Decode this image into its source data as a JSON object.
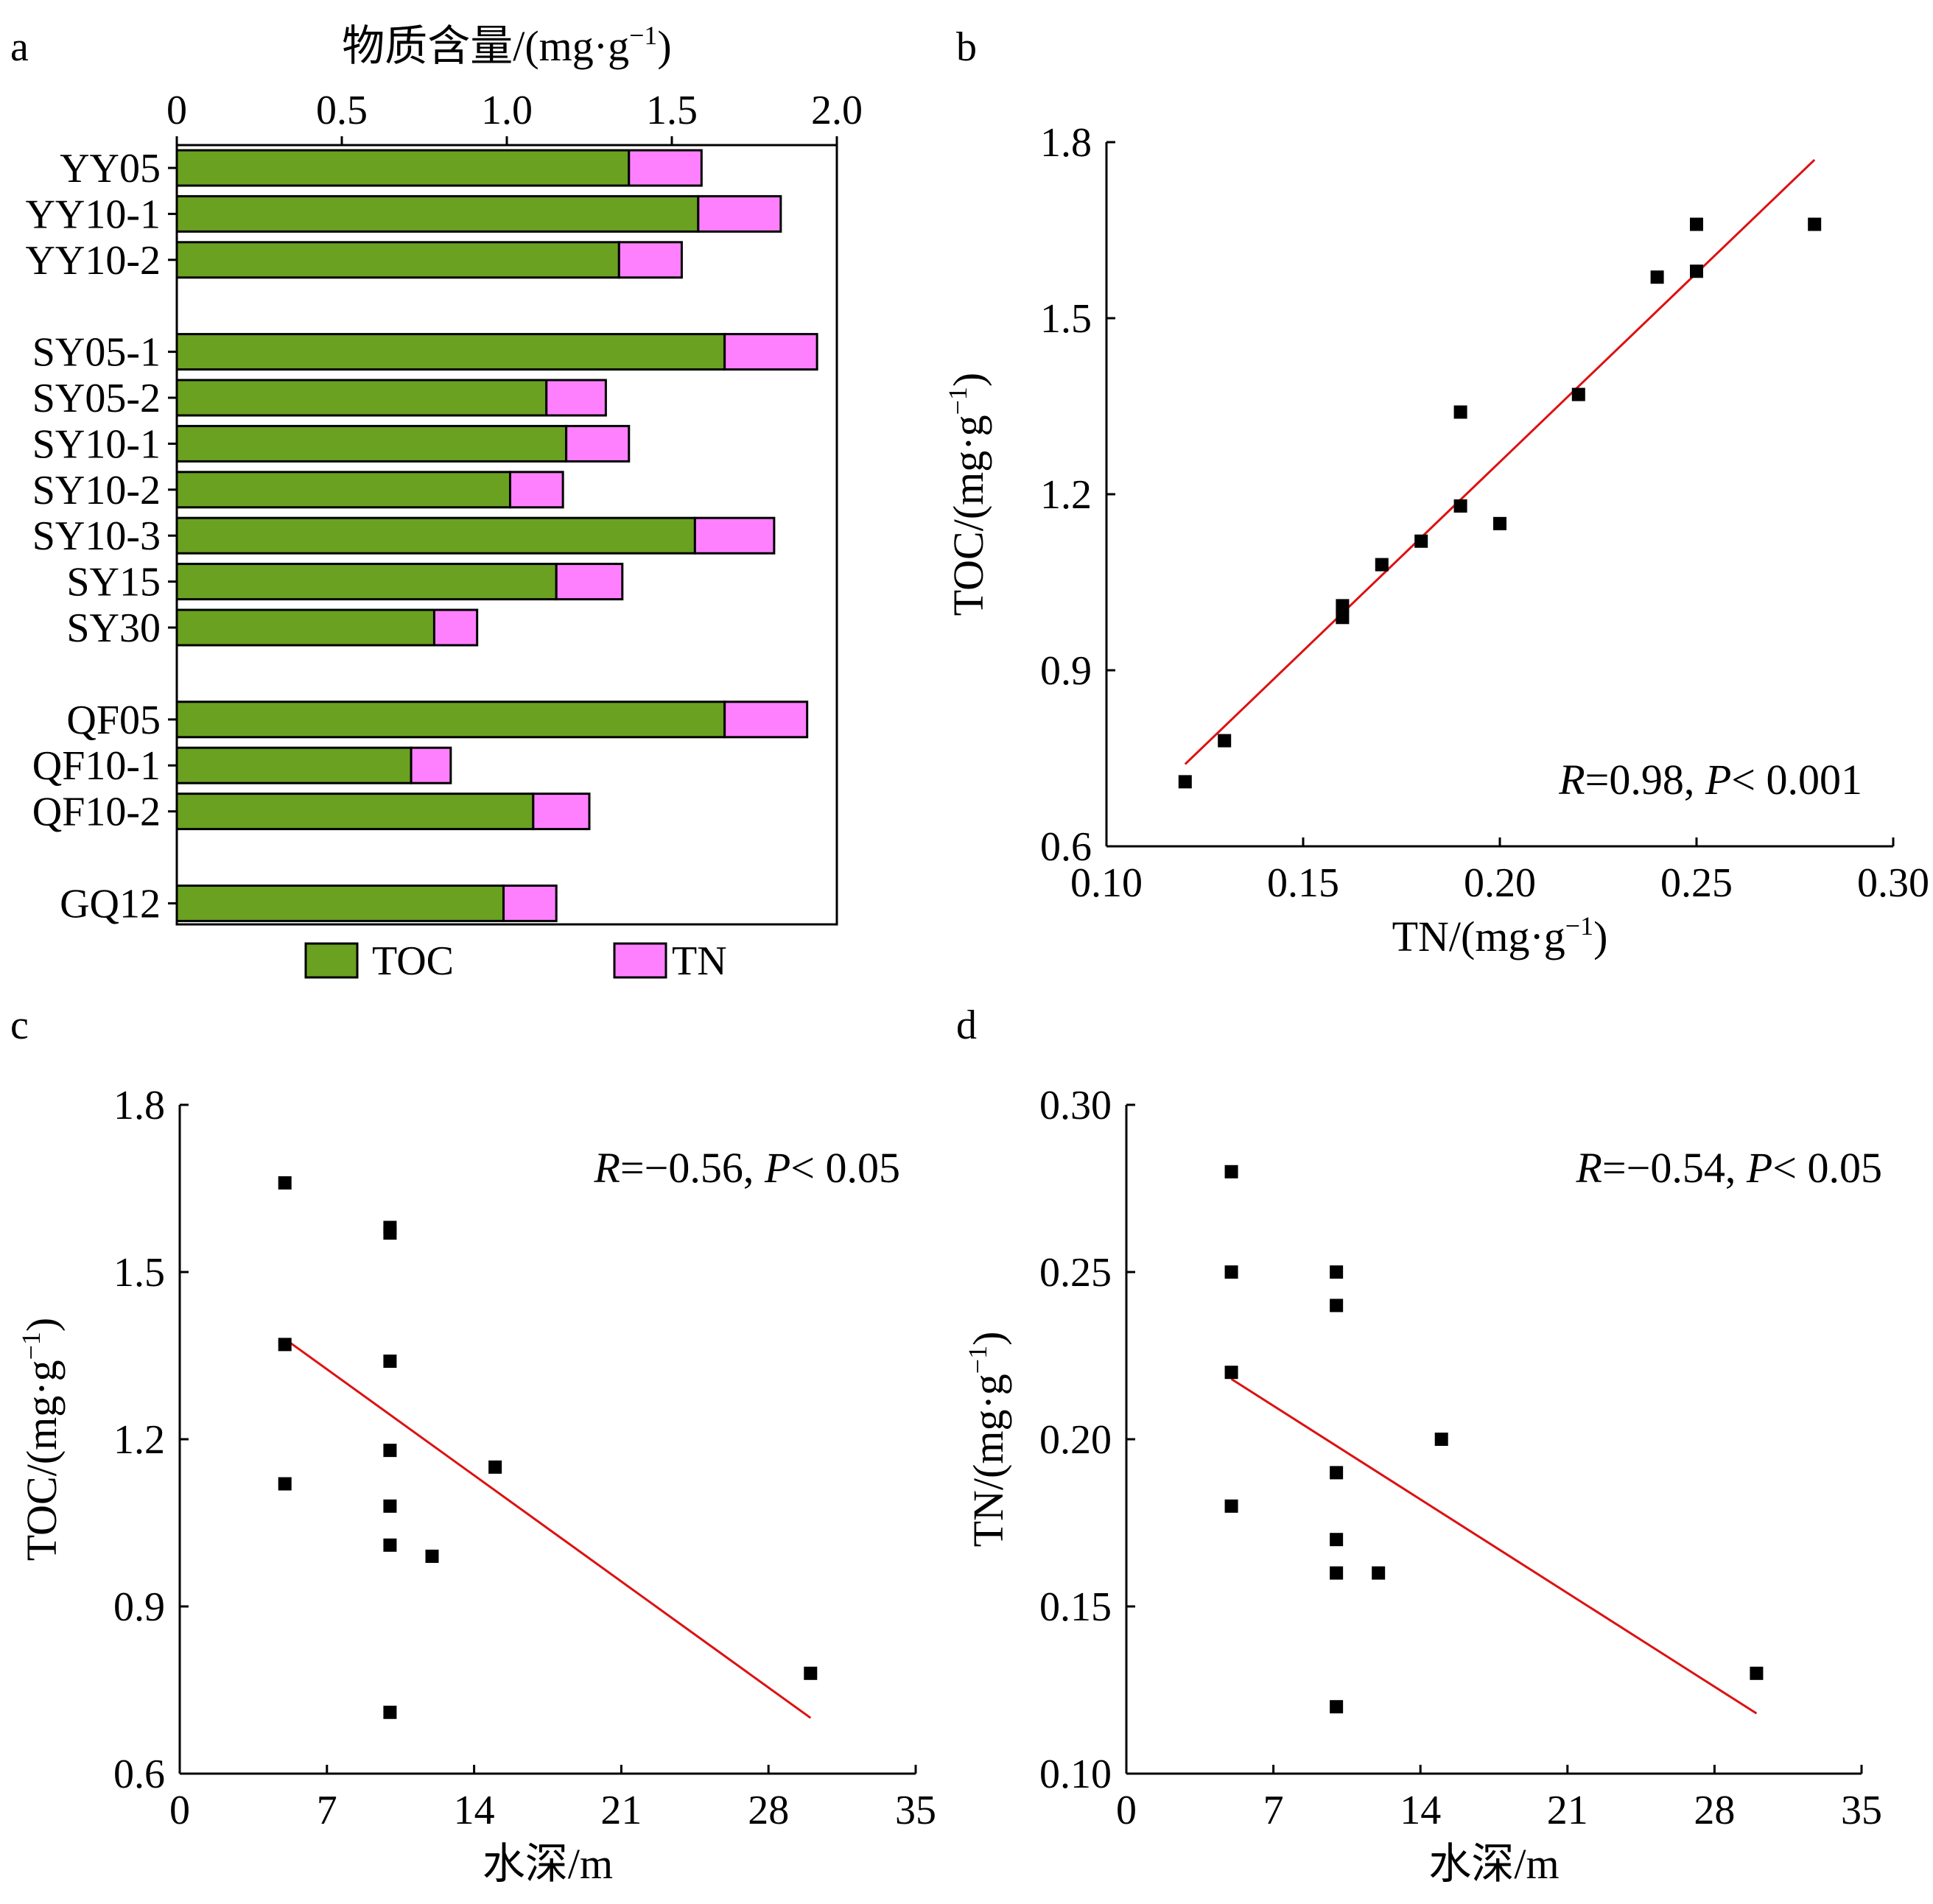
{
  "colors": {
    "toc": "#6aa121",
    "tn": "#ff80ff",
    "fit_line": "#dd1111",
    "points": "#000000"
  },
  "chart_data": [
    {
      "panel": "a",
      "type": "bar",
      "orientation": "horizontal",
      "stacked": true,
      "xlabel_parts": [
        "物质含量/(mg·g",
        "−1",
        ")"
      ],
      "xlim": [
        0,
        2.0
      ],
      "xticks": [
        "0",
        "0.5",
        "1.0",
        "1.5",
        "2.0"
      ],
      "groups": [
        [
          "YY05",
          "YY10-1",
          "YY10-2"
        ],
        [
          "SY05-1",
          "SY05-2",
          "SY10-1",
          "SY10-2",
          "SY10-3",
          "SY15",
          "SY30"
        ],
        [
          "QF05",
          "QF10-1",
          "QF10-2"
        ],
        [
          "GQ12"
        ]
      ],
      "categories": [
        "YY05",
        "YY10-1",
        "YY10-2",
        "SY05-1",
        "SY05-2",
        "SY10-1",
        "SY10-2",
        "SY10-3",
        "SY15",
        "SY30",
        "QF05",
        "QF10-1",
        "QF10-2",
        "GQ12"
      ],
      "series": [
        {
          "name": "TOC",
          "values": [
            1.37,
            1.58,
            1.34,
            1.66,
            1.12,
            1.18,
            1.01,
            1.57,
            1.15,
            0.78,
            1.66,
            0.71,
            1.08,
            0.99
          ]
        },
        {
          "name": "TN",
          "values": [
            0.22,
            0.25,
            0.19,
            0.28,
            0.18,
            0.19,
            0.16,
            0.24,
            0.2,
            0.13,
            0.25,
            0.12,
            0.17,
            0.16
          ]
        }
      ],
      "legend": [
        "TOC",
        "TN"
      ]
    },
    {
      "panel": "b",
      "type": "scatter",
      "xlabel_parts": [
        "TN/(mg·g",
        "−1",
        ")"
      ],
      "ylabel_parts": [
        "TOC/(mg·g",
        "−1",
        ")"
      ],
      "xlim": [
        0.1,
        0.3
      ],
      "ylim": [
        0.6,
        1.8
      ],
      "xticks": [
        "0.10",
        "0.15",
        "0.20",
        "0.25",
        "0.30"
      ],
      "yticks": [
        "0.6",
        "0.9",
        "1.2",
        "1.5",
        "1.8"
      ],
      "points": [
        [
          0.12,
          0.71
        ],
        [
          0.13,
          0.78
        ],
        [
          0.16,
          0.99
        ],
        [
          0.16,
          1.01
        ],
        [
          0.17,
          1.08
        ],
        [
          0.18,
          1.12
        ],
        [
          0.19,
          1.18
        ],
        [
          0.19,
          1.34
        ],
        [
          0.2,
          1.15
        ],
        [
          0.22,
          1.37
        ],
        [
          0.24,
          1.57
        ],
        [
          0.25,
          1.58
        ],
        [
          0.25,
          1.66
        ],
        [
          0.28,
          1.66
        ]
      ],
      "fit_line": [
        [
          0.12,
          0.74
        ],
        [
          0.28,
          1.77
        ]
      ],
      "annotation": {
        "r_label": "R",
        "r_value": "=0.98, ",
        "p_label": "P",
        "p_value": "< 0.001"
      }
    },
    {
      "panel": "c",
      "type": "scatter",
      "xlabel": "水深/m",
      "ylabel_parts": [
        "TOC/(mg·g",
        "−1",
        ")"
      ],
      "xlim": [
        0,
        35
      ],
      "ylim": [
        0.6,
        1.8
      ],
      "xticks": [
        "0",
        "7",
        "14",
        "21",
        "28",
        "35"
      ],
      "yticks": [
        "0.6",
        "0.9",
        "1.2",
        "1.5",
        "1.8"
      ],
      "points": [
        [
          5,
          1.66
        ],
        [
          5,
          1.37
        ],
        [
          5,
          1.12
        ],
        [
          10,
          1.58
        ],
        [
          10,
          1.57
        ],
        [
          10,
          1.34
        ],
        [
          10,
          1.18
        ],
        [
          10,
          1.08
        ],
        [
          10,
          1.01
        ],
        [
          10,
          0.71
        ],
        [
          12,
          0.99
        ],
        [
          15,
          1.15
        ],
        [
          30,
          0.78
        ]
      ],
      "fit_line": [
        [
          5,
          1.38
        ],
        [
          30,
          0.7
        ]
      ],
      "annotation": {
        "r_label": "R",
        "r_value": "=−0.56, ",
        "p_label": "P",
        "p_value": "< 0.05"
      }
    },
    {
      "panel": "d",
      "type": "scatter",
      "xlabel": "水深/m",
      "ylabel_parts": [
        "TN/(mg·g",
        "−1",
        ")"
      ],
      "xlim": [
        0,
        35
      ],
      "ylim": [
        0.1,
        0.3
      ],
      "xticks": [
        "0",
        "7",
        "14",
        "21",
        "28",
        "35"
      ],
      "yticks": [
        "0.10",
        "0.15",
        "0.20",
        "0.25",
        "0.30"
      ],
      "points": [
        [
          5,
          0.28
        ],
        [
          5,
          0.25
        ],
        [
          5,
          0.22
        ],
        [
          5,
          0.18
        ],
        [
          10,
          0.25
        ],
        [
          10,
          0.24
        ],
        [
          10,
          0.19
        ],
        [
          10,
          0.17
        ],
        [
          10,
          0.16
        ],
        [
          10,
          0.12
        ],
        [
          12,
          0.16
        ],
        [
          15,
          0.2
        ],
        [
          30,
          0.13
        ]
      ],
      "fit_line": [
        [
          5,
          0.218
        ],
        [
          30,
          0.118
        ]
      ],
      "annotation": {
        "r_label": "R",
        "r_value": "=−0.54, ",
        "p_label": "P",
        "p_value": "< 0.05"
      }
    }
  ]
}
